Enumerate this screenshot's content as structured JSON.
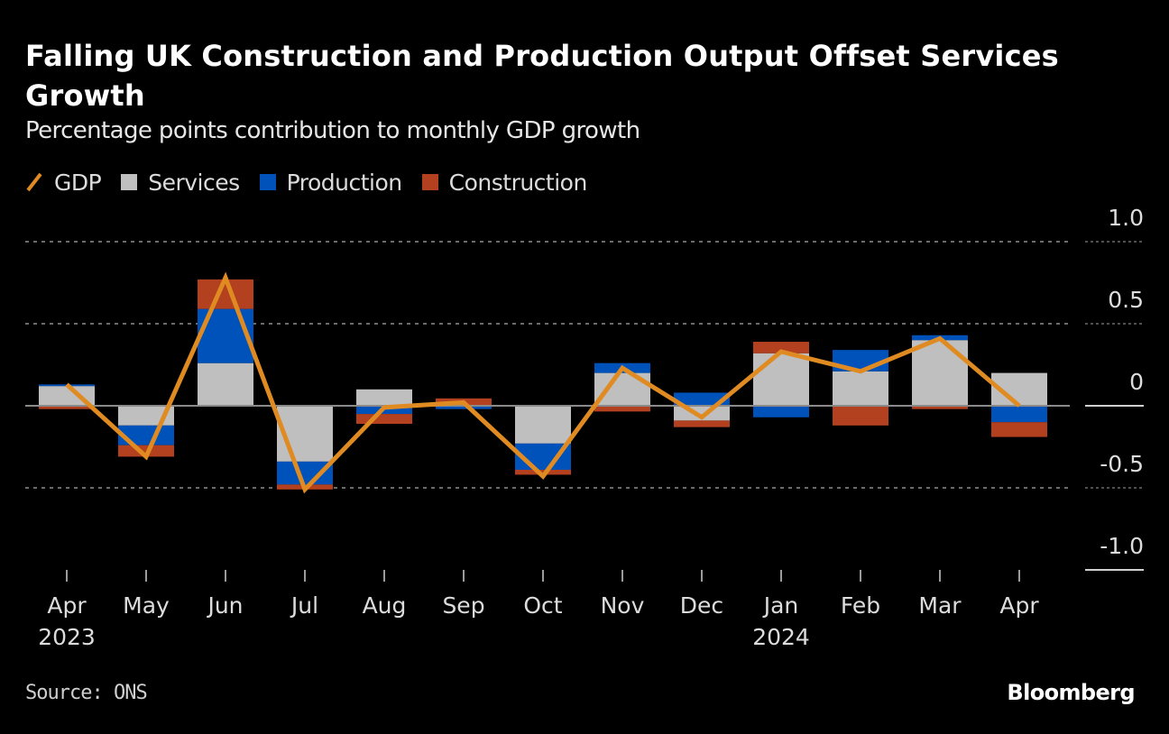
{
  "header": {
    "title": "Falling UK Construction and Production Output Offset Services Growth",
    "subtitle": "Percentage points contribution to monthly GDP growth"
  },
  "legend": [
    {
      "key": "gdp",
      "label": "GDP",
      "kind": "line",
      "icon": "line-swatch-icon"
    },
    {
      "key": "services",
      "label": "Services",
      "kind": "bar",
      "icon": "square-swatch-icon"
    },
    {
      "key": "production",
      "label": "Production",
      "kind": "bar",
      "icon": "square-swatch-icon"
    },
    {
      "key": "construction",
      "label": "Construction",
      "kind": "bar",
      "icon": "square-swatch-icon"
    }
  ],
  "colors": {
    "gdp": "#e08a22",
    "services": "#bfbfbf",
    "production": "#0052bb",
    "construction": "#b3401f",
    "grid": "#6b6b6b",
    "zero_line": "#8a8a8a",
    "axis_text": "#dcdcdc",
    "background": "#000000"
  },
  "footer": {
    "source": "Source: ONS",
    "brand": "Bloomberg"
  },
  "chart_data": {
    "type": "bar",
    "stacked": true,
    "title": "Falling UK Construction and Production Output Offset Services Growth",
    "subtitle": "Percentage points contribution to monthly GDP growth",
    "xlabel": "",
    "ylabel": "",
    "categories": [
      "Apr",
      "May",
      "Jun",
      "Jul",
      "Aug",
      "Sep",
      "Oct",
      "Nov",
      "Dec",
      "Jan",
      "Feb",
      "Mar",
      "Apr"
    ],
    "category_sublabels": [
      "2023",
      "",
      "",
      "",
      "",
      "",
      "",
      "",
      "",
      "2024",
      "",
      "",
      ""
    ],
    "series": [
      {
        "name": "Services",
        "type": "bar",
        "values": [
          0.12,
          -0.12,
          0.26,
          -0.34,
          0.1,
          0.005,
          -0.23,
          0.2,
          -0.09,
          0.32,
          0.21,
          0.4,
          0.2
        ]
      },
      {
        "name": "Production",
        "type": "bar",
        "values": [
          0.01,
          -0.12,
          0.33,
          -0.14,
          -0.05,
          -0.02,
          -0.16,
          0.06,
          0.08,
          -0.07,
          0.13,
          0.03,
          -0.1
        ]
      },
      {
        "name": "Construction",
        "type": "bar",
        "values": [
          -0.02,
          -0.07,
          0.18,
          -0.03,
          -0.06,
          0.04,
          -0.03,
          -0.035,
          -0.04,
          0.07,
          -0.12,
          -0.02,
          -0.09
        ]
      },
      {
        "name": "GDP",
        "type": "line",
        "values": [
          0.13,
          -0.31,
          0.78,
          -0.51,
          -0.01,
          0.02,
          -0.43,
          0.23,
          -0.07,
          0.33,
          0.21,
          0.41,
          0.0
        ]
      }
    ],
    "yticks": [
      1.0,
      0.5,
      0,
      -0.5,
      -1.0
    ],
    "ytick_labels": [
      "1.0",
      "0.5",
      "0",
      "-0.5",
      "-1.0"
    ],
    "ylim": [
      -1.0,
      1.0
    ],
    "grid": true,
    "yaxis_position": "right",
    "legend_position": "top-left"
  }
}
